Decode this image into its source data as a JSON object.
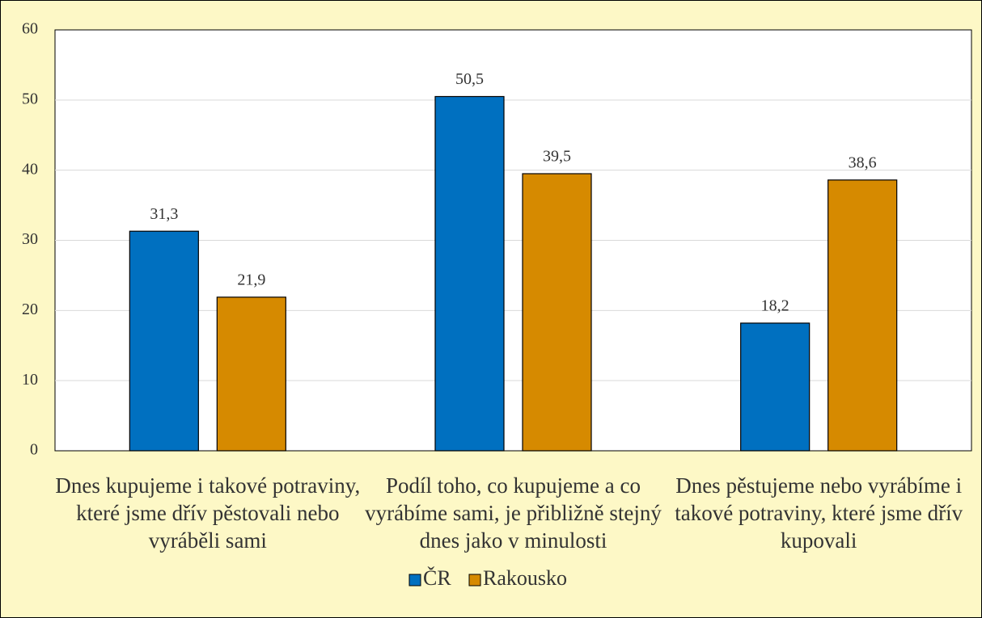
{
  "chart_data": {
    "type": "bar",
    "categories": [
      "Dnes kupujeme i takové potraviny, které jsme dřív pěstovali nebo vyráběli sami",
      "Podíl toho, co kupujeme a co vyrábíme sami, je přibližně stejný dnes jako v minulosti",
      "Dnes pěstujeme nebo vyrábíme i takové potraviny, které jsme dřív kupovali"
    ],
    "series": [
      {
        "name": "ČR",
        "color": "#0070c0",
        "values": [
          31.3,
          50.5,
          18.2
        ],
        "value_labels": [
          "31,3",
          "50,5",
          "18,2"
        ]
      },
      {
        "name": "Rakousko",
        "color": "#d68a00",
        "values": [
          21.9,
          39.5,
          38.6
        ],
        "value_labels": [
          "21,9",
          "39,5",
          "38,6"
        ]
      }
    ],
    "ylim": [
      0,
      60
    ],
    "yticks": [
      0,
      10,
      20,
      30,
      40,
      50,
      60
    ],
    "grid": true,
    "legend": "bottom"
  }
}
